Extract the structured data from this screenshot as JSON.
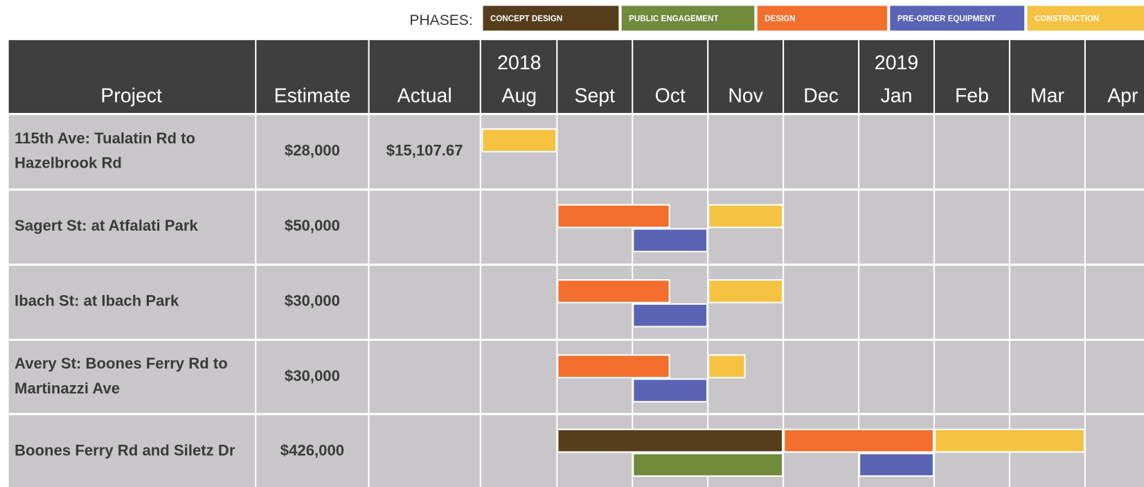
{
  "chart_data": {
    "type": "gantt",
    "legend_title": "PHASES:",
    "phases": [
      {
        "name": "CONCEPT DESIGN",
        "color": "#563e1d"
      },
      {
        "name": "PUBLIC ENGAGEMENT",
        "color": "#6f8b3b"
      },
      {
        "name": "DESIGN",
        "color": "#f26f2d"
      },
      {
        "name": "PRE-ORDER EQUIPMENT",
        "color": "#5a63b5"
      },
      {
        "name": "CONSTRUCTION",
        "color": "#f6c242"
      }
    ],
    "columns": [
      "Project",
      "Estimate",
      "Actual"
    ],
    "months": [
      {
        "name": "Aug",
        "year": "2018"
      },
      {
        "name": "Sept"
      },
      {
        "name": "Oct"
      },
      {
        "name": "Nov"
      },
      {
        "name": "Dec"
      },
      {
        "name": "Jan",
        "year": "2019"
      },
      {
        "name": "Feb"
      },
      {
        "name": "Mar"
      },
      {
        "name": "Apr"
      }
    ],
    "rows": [
      {
        "project": [
          "115th Ave: Tualatin Rd to",
          "Hazelbrook Rd"
        ],
        "estimate": "$28,000",
        "actual": "$15,107.67",
        "tasks": [
          {
            "phase": 4,
            "start": 0,
            "end": 1,
            "lane": 0
          }
        ]
      },
      {
        "project": [
          "Sagert St: at Atfalati Park"
        ],
        "estimate": "$50,000",
        "tasks": [
          {
            "phase": 2,
            "start": 1,
            "end": 2.5,
            "lane": 0
          },
          {
            "phase": 4,
            "start": 3,
            "end": 4,
            "lane": 0
          },
          {
            "phase": 3,
            "start": 2,
            "end": 3,
            "lane": 1
          }
        ]
      },
      {
        "project": [
          "Ibach St: at Ibach Park"
        ],
        "estimate": "$30,000",
        "tasks": [
          {
            "phase": 2,
            "start": 1,
            "end": 2.5,
            "lane": 0
          },
          {
            "phase": 4,
            "start": 3,
            "end": 4,
            "lane": 0
          },
          {
            "phase": 3,
            "start": 2,
            "end": 3,
            "lane": 1
          }
        ]
      },
      {
        "project": [
          "Avery St: Boones Ferry Rd to",
          "Martinazzi Ave"
        ],
        "estimate": "$30,000",
        "tasks": [
          {
            "phase": 2,
            "start": 1,
            "end": 2.5,
            "lane": 0
          },
          {
            "phase": 4,
            "start": 3,
            "end": 3.5,
            "lane": 0
          },
          {
            "phase": 3,
            "start": 2,
            "end": 3,
            "lane": 1
          }
        ]
      },
      {
        "project": [
          "Boones Ferry Rd and Siletz Dr"
        ],
        "estimate": "$426,000",
        "tasks": [
          {
            "phase": 0,
            "start": 1,
            "end": 4,
            "lane": 0
          },
          {
            "phase": 2,
            "start": 4,
            "end": 6,
            "lane": 0
          },
          {
            "phase": 4,
            "start": 6,
            "end": 8,
            "lane": 0
          },
          {
            "phase": 1,
            "start": 2,
            "end": 4,
            "lane": 1
          },
          {
            "phase": 3,
            "start": 5,
            "end": 6,
            "lane": 1
          }
        ]
      }
    ]
  }
}
